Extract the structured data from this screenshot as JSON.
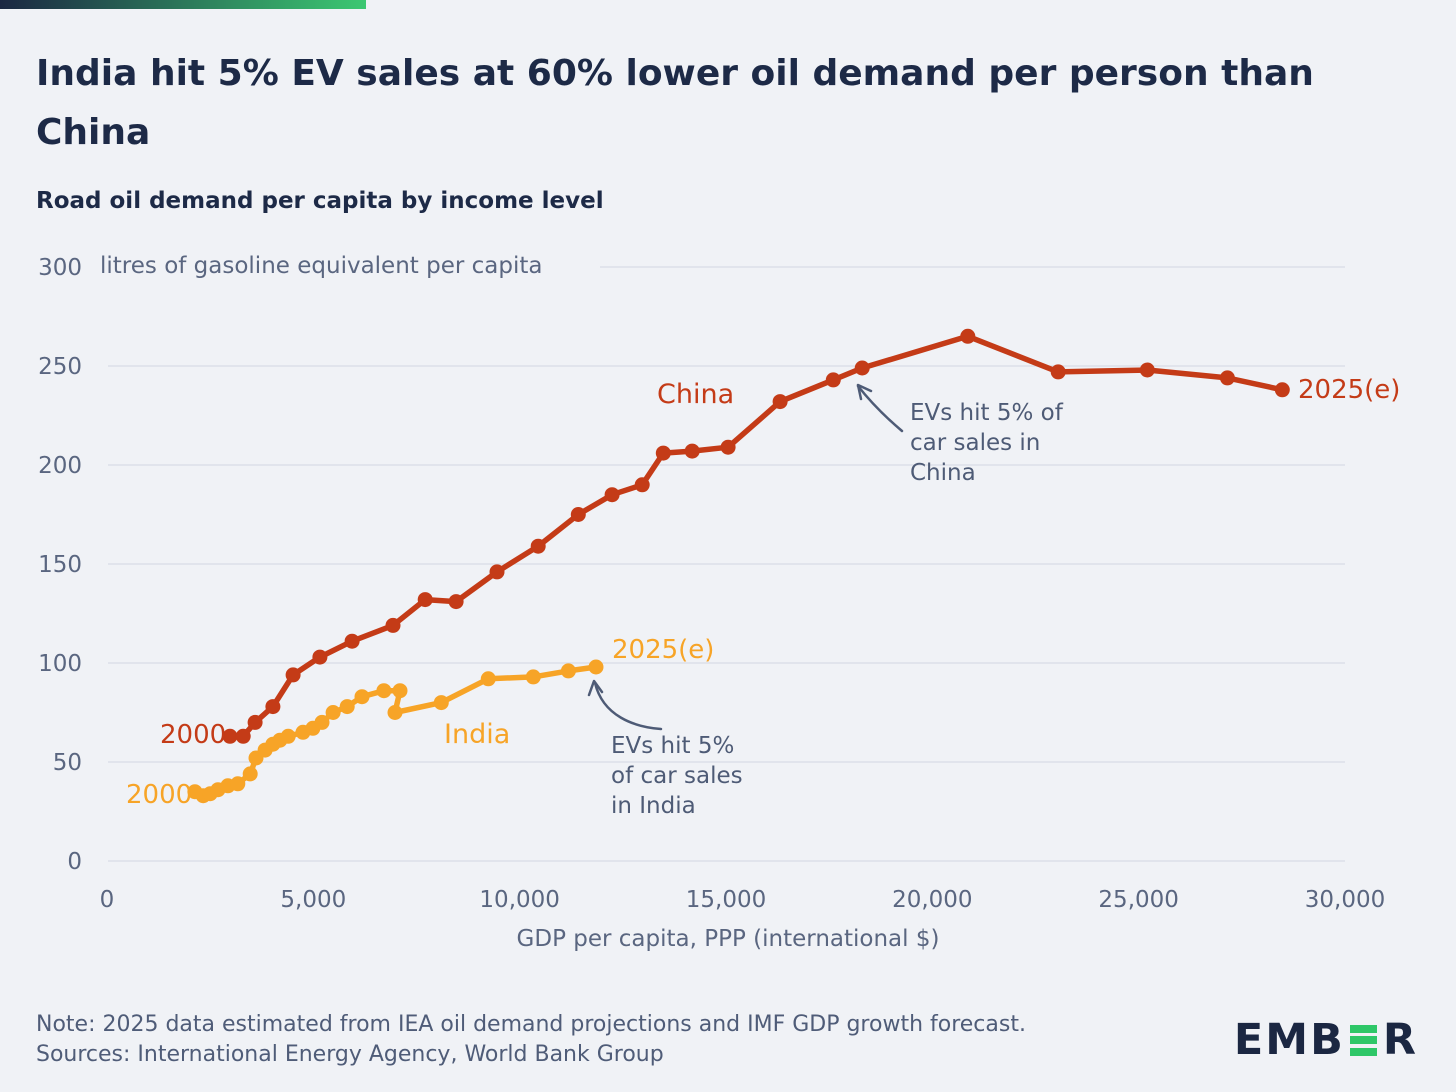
{
  "header": {
    "title": "India hit 5% EV sales at 60% lower oil demand per person than China",
    "subtitle": "Road oil demand per capita by income level"
  },
  "chart_data": {
    "type": "line",
    "title": "Road oil demand per capita by income level",
    "xlabel": "GDP per capita, PPP (international $)",
    "ylabel": "litres of gasoline equivalent per capita",
    "xlim": [
      0,
      30000
    ],
    "ylim": [
      0,
      300
    ],
    "grid": "horizontal",
    "x_ticks": [
      {
        "value": 0,
        "label": "0"
      },
      {
        "value": 5000,
        "label": "5,000"
      },
      {
        "value": 10000,
        "label": "10,000"
      },
      {
        "value": 15000,
        "label": "15,000"
      },
      {
        "value": 20000,
        "label": "20,000"
      },
      {
        "value": 25000,
        "label": "25,000"
      },
      {
        "value": 30000,
        "label": "30,000"
      }
    ],
    "y_ticks": [
      {
        "value": 0,
        "label": "0"
      },
      {
        "value": 50,
        "label": "50"
      },
      {
        "value": 100,
        "label": "100"
      },
      {
        "value": 150,
        "label": "150"
      },
      {
        "value": 200,
        "label": "200"
      },
      {
        "value": 250,
        "label": "250"
      },
      {
        "value": 300,
        "label": "300"
      }
    ],
    "series": [
      {
        "name": "China",
        "color": "#c43b17",
        "start_year_label": "2000",
        "end_year_label": "2025(e)",
        "points": [
          {
            "year": 2000,
            "gdp": 2980,
            "litres": 63
          },
          {
            "year": 2001,
            "gdp": 3300,
            "litres": 63
          },
          {
            "year": 2002,
            "gdp": 3590,
            "litres": 70
          },
          {
            "year": 2003,
            "gdp": 4020,
            "litres": 78
          },
          {
            "year": 2004,
            "gdp": 4510,
            "litres": 94
          },
          {
            "year": 2005,
            "gdp": 5160,
            "litres": 103
          },
          {
            "year": 2006,
            "gdp": 5940,
            "litres": 111
          },
          {
            "year": 2007,
            "gdp": 6930,
            "litres": 119
          },
          {
            "year": 2008,
            "gdp": 7710,
            "litres": 132
          },
          {
            "year": 2009,
            "gdp": 8460,
            "litres": 131
          },
          {
            "year": 2010,
            "gdp": 9450,
            "litres": 146
          },
          {
            "year": 2011,
            "gdp": 10450,
            "litres": 159
          },
          {
            "year": 2012,
            "gdp": 11420,
            "litres": 175
          },
          {
            "year": 2013,
            "gdp": 12240,
            "litres": 185
          },
          {
            "year": 2014,
            "gdp": 12970,
            "litres": 190
          },
          {
            "year": 2015,
            "gdp": 13480,
            "litres": 206
          },
          {
            "year": 2016,
            "gdp": 14180,
            "litres": 207
          },
          {
            "year": 2017,
            "gdp": 15050,
            "litres": 209
          },
          {
            "year": 2018,
            "gdp": 16310,
            "litres": 232
          },
          {
            "year": 2019,
            "gdp": 17600,
            "litres": 243
          },
          {
            "year": 2020,
            "gdp": 18300,
            "litres": 249
          },
          {
            "year": 2021,
            "gdp": 20860,
            "litres": 265
          },
          {
            "year": 2022,
            "gdp": 23050,
            "litres": 247
          },
          {
            "year": 2023,
            "gdp": 25210,
            "litres": 248
          },
          {
            "year": 2024,
            "gdp": 27150,
            "litres": 244
          },
          {
            "year": 2025,
            "gdp": 28480,
            "litres": 238
          }
        ]
      },
      {
        "name": "India",
        "color": "#f7a427",
        "start_year_label": "2000",
        "end_year_label": "2025(e)",
        "points": [
          {
            "year": 2000,
            "gdp": 2130,
            "litres": 35
          },
          {
            "year": 2001,
            "gdp": 2330,
            "litres": 33
          },
          {
            "year": 2002,
            "gdp": 2500,
            "litres": 34
          },
          {
            "year": 2003,
            "gdp": 2690,
            "litres": 36
          },
          {
            "year": 2004,
            "gdp": 2930,
            "litres": 38
          },
          {
            "year": 2005,
            "gdp": 3170,
            "litres": 39
          },
          {
            "year": 2006,
            "gdp": 3470,
            "litres": 44
          },
          {
            "year": 2007,
            "gdp": 3610,
            "litres": 52
          },
          {
            "year": 2008,
            "gdp": 3830,
            "litres": 56
          },
          {
            "year": 2009,
            "gdp": 4020,
            "litres": 59
          },
          {
            "year": 2010,
            "gdp": 4190,
            "litres": 61
          },
          {
            "year": 2011,
            "gdp": 4390,
            "litres": 63
          },
          {
            "year": 2012,
            "gdp": 4750,
            "litres": 65
          },
          {
            "year": 2013,
            "gdp": 4990,
            "litres": 67
          },
          {
            "year": 2014,
            "gdp": 5210,
            "litres": 70
          },
          {
            "year": 2015,
            "gdp": 5480,
            "litres": 75
          },
          {
            "year": 2016,
            "gdp": 5820,
            "litres": 78
          },
          {
            "year": 2017,
            "gdp": 6180,
            "litres": 83
          },
          {
            "year": 2018,
            "gdp": 6710,
            "litres": 86
          },
          {
            "year": 2019,
            "gdp": 7100,
            "litres": 86
          },
          {
            "year": 2020,
            "gdp": 6980,
            "litres": 75
          },
          {
            "year": 2021,
            "gdp": 8100,
            "litres": 80
          },
          {
            "year": 2022,
            "gdp": 9240,
            "litres": 92
          },
          {
            "year": 2023,
            "gdp": 10330,
            "litres": 93
          },
          {
            "year": 2024,
            "gdp": 11180,
            "litres": 96
          },
          {
            "year": 2025,
            "gdp": 11850,
            "litres": 98
          }
        ]
      }
    ],
    "annotations": [
      {
        "series": "China",
        "text": "EVs hit 5% of\ncar sales in\nChina"
      },
      {
        "series": "India",
        "text": "EVs hit 5%\nof car sales\nin India"
      }
    ]
  },
  "footer": {
    "note": "Note: 2025 data estimated from IEA oil demand projections and IMF GDP growth forecast.",
    "sources": "Sources: International Energy Agency, World Bank Group"
  },
  "logo": {
    "text_left": "EMB",
    "text_right": "R",
    "green": "#2ec768",
    "navy": "#1b2742"
  }
}
